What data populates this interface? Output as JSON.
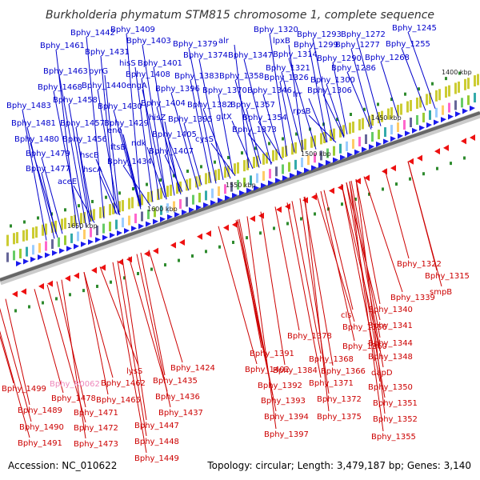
{
  "title": "Burkholderia phymatum STM815 chromosome 1, complete sequence",
  "footer": {
    "accession": "Accession: NC_010622",
    "summary": "Topology: circular; Length: 3,479,187 bp; Genes: 3,140"
  },
  "colors": {
    "forward_label": "#0000cc",
    "reverse_label": "#cc0000",
    "rna_label": "#ee88bb",
    "backbone": "#555555",
    "tick": "#2e8b2e"
  },
  "kbp_ticks": [
    "1400 kbp",
    "1450 kbp",
    "1500 kbp",
    "1550 kbp",
    "1600 kbp",
    "1650 kbp"
  ],
  "forward_labels": [
    "Bphy_1409",
    "Bphy_1442",
    "Bphy_1461",
    "Bphy_1403",
    "Bphy_1379",
    "alr",
    "Bphy_1320",
    "Bphy_1293",
    "Bphy_1272",
    "Bphy_1245",
    "Bphy_1431",
    "hisS",
    "Bphy_1401",
    "Bphy_1374",
    "Bphy_1347",
    "lpxB",
    "Bphy_1299",
    "Bphy_1277",
    "Bphy_1255",
    "Bphy_1463",
    "pyrG",
    "Bphy_1408",
    "Bphy_1383",
    "Bphy_1358",
    "Bphy_1314",
    "Bphy_1290",
    "Bphy_1268",
    "Bphy_1440",
    "engA",
    "Bphy_1396",
    "Bphy_1370",
    "Bphy_1346",
    "Bphy_1321",
    "Bphy_1286",
    "Bphy_1468",
    "Bphy_1326",
    "Bphy_1300",
    "Bphy_1458",
    "Bphy_1404",
    "Bphy_1382",
    "Bphy_1357",
    "frr",
    "Bphy_1306",
    "Bphy_1483",
    "Bphy_1430",
    "hisZ",
    "Bphy_1395",
    "gltX",
    "Bphy_1354",
    "rpsB",
    "Bphy_1457",
    "eno",
    "Bphy_1429",
    "Bphy_1373",
    "Bphy_1481",
    "Bphy_1456",
    "ndk",
    "Bphy_1405",
    "cysS",
    "Bphy_1480",
    "ftsB",
    "Bphy_1407",
    "Bphy_1479",
    "hscB",
    "Bphy_1434",
    "Bphy_1477",
    "hscA",
    "aceE"
  ],
  "reverse_labels": [
    "Bphy_1322",
    "Bphy_1315",
    "smpB",
    "Bphy_1339",
    "Bphy_1340",
    "cls",
    "Bphy_1341",
    "Bphy_1356",
    "Bphy_1378",
    "Bphy_1344",
    "Bphy_1360",
    "Bphy_1348",
    "Bphy_1391",
    "Bphy_1368",
    "Bphy_1424",
    "Bphy_1402",
    "Bphy_1384",
    "Bphy_1366",
    "dapD",
    "lysS",
    "Bphy_1435",
    "Bphy_1462",
    "Bphy_1371",
    "Bphy_1350",
    "Bphy_1499",
    "Bphy_1478",
    "Bphy_1392",
    "Bphy_1436",
    "Bphy_1465",
    "Bphy_1372",
    "Bphy_1393",
    "Bphy_1351",
    "Bphy_1489",
    "Bphy_1471",
    "Bphy_1437",
    "Bphy_1394",
    "Bphy_1375",
    "Bphy_1352",
    "Bphy_1490",
    "Bphy_1472",
    "Bphy_1447",
    "Bphy_1397",
    "Bphy_1355",
    "Bphy_1491",
    "Bphy_1473",
    "Bphy_1448",
    "Bphy_1449"
  ],
  "rna_labels": [
    "Bphy_R0062"
  ]
}
